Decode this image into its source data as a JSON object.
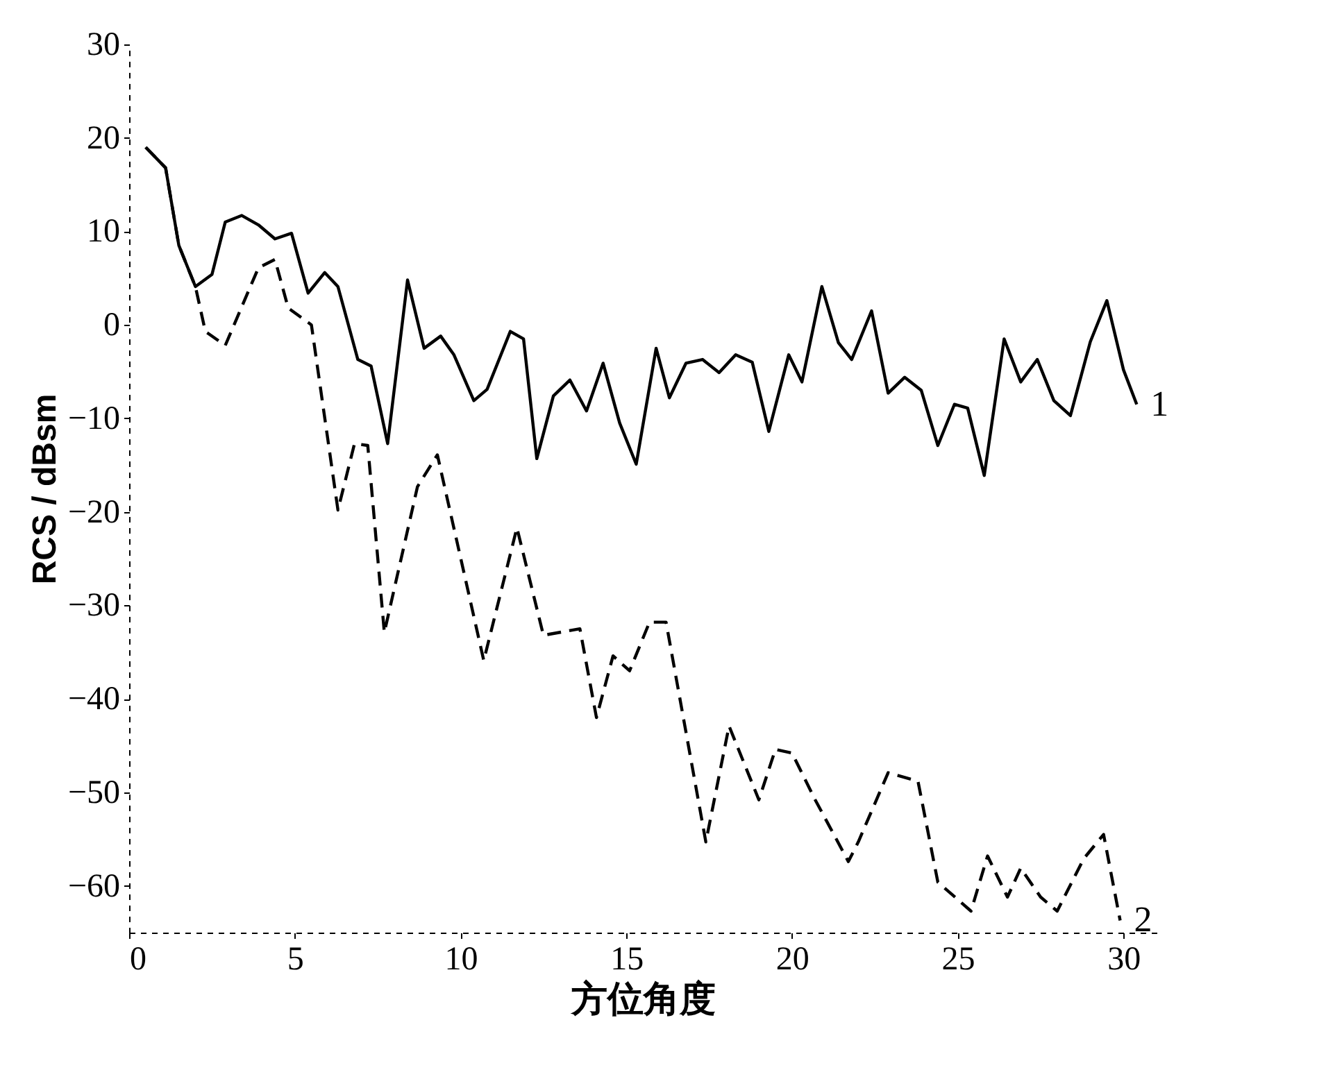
{
  "chart_data": {
    "type": "line",
    "xlabel": "方位角度",
    "ylabel": "RCS / dBsm",
    "xlim": [
      0,
      31
    ],
    "xticks": [
      0,
      5,
      10,
      15,
      20,
      25,
      30
    ],
    "ylim": [
      -65,
      30
    ],
    "yticks": [
      30,
      20,
      10,
      0,
      -10,
      -20,
      -30,
      -40,
      -50,
      -60
    ],
    "grid": false,
    "series": [
      {
        "name": "1",
        "color": "#000000",
        "line_style": "solid",
        "x": [
          0.5,
          1.1,
          1.5,
          2.0,
          2.5,
          2.9,
          3.4,
          3.9,
          4.4,
          4.9,
          5.4,
          5.9,
          6.3,
          6.9,
          7.3,
          7.8,
          8.4,
          8.9,
          9.4,
          9.8,
          10.4,
          10.8,
          11.5,
          11.9,
          12.3,
          12.8,
          13.3,
          13.8,
          14.3,
          14.8,
          15.3,
          15.9,
          16.3,
          16.8,
          17.3,
          17.8,
          18.3,
          18.8,
          19.3,
          19.9,
          20.3,
          20.9,
          21.4,
          21.8,
          22.4,
          22.9,
          23.4,
          23.9,
          24.4,
          24.9,
          25.3,
          25.8,
          26.4,
          26.9,
          27.4,
          27.9,
          28.4,
          29.0,
          29.5,
          30.0,
          30.4
        ],
        "values": [
          19.0,
          16.8,
          8.5,
          4.1,
          5.4,
          11.0,
          11.7,
          10.7,
          9.2,
          9.8,
          3.4,
          5.6,
          4.1,
          -3.7,
          -4.4,
          -12.7,
          4.8,
          -2.5,
          -1.2,
          -3.2,
          -8.1,
          -6.9,
          -0.7,
          -1.5,
          -14.3,
          -7.6,
          -5.9,
          -9.2,
          -4.1,
          -10.5,
          -14.9,
          -2.5,
          -7.8,
          -4.1,
          -3.7,
          -5.1,
          -3.2,
          -4.0,
          -11.4,
          -3.2,
          -6.1,
          4.1,
          -1.9,
          -3.7,
          1.5,
          -7.3,
          -5.6,
          -7.0,
          -12.9,
          -8.5,
          -8.9,
          -16.1,
          -1.5,
          -6.1,
          -3.7,
          -8.1,
          -9.7,
          -1.8,
          2.6,
          -4.8,
          -8.5
        ]
      },
      {
        "name": "2",
        "color": "#000000",
        "line_style": "dashed",
        "x": [
          0.5,
          1.1,
          1.5,
          2.0,
          2.3,
          2.9,
          3.9,
          4.4,
          4.8,
          5.5,
          6.3,
          6.8,
          7.2,
          7.7,
          8.7,
          9.3,
          10.7,
          11.7,
          12.5,
          13.6,
          14.1,
          14.6,
          15.1,
          15.7,
          16.2,
          17.4,
          18.1,
          19.0,
          19.5,
          20.0,
          20.7,
          21.7,
          22.0,
          22.9,
          23.8,
          24.4,
          25.4,
          25.9,
          26.5,
          26.9,
          27.5,
          28.0,
          28.8,
          29.4,
          29.9
        ],
        "values": [
          19.0,
          16.8,
          8.5,
          4.1,
          -0.7,
          -2.2,
          6.1,
          7.0,
          1.8,
          0.0,
          -19.8,
          -12.7,
          -12.9,
          -32.9,
          -17.3,
          -13.9,
          -35.9,
          -21.7,
          -33.2,
          -32.5,
          -42.0,
          -35.4,
          -37.0,
          -31.8,
          -31.8,
          -55.3,
          -42.9,
          -50.8,
          -45.4,
          -45.8,
          -50.8,
          -57.4,
          -55.3,
          -47.9,
          -48.8,
          -59.6,
          -62.7,
          -56.8,
          -61.2,
          -58.1,
          -61.2,
          -62.7,
          -57.1,
          -54.5,
          -63.7
        ]
      }
    ]
  }
}
